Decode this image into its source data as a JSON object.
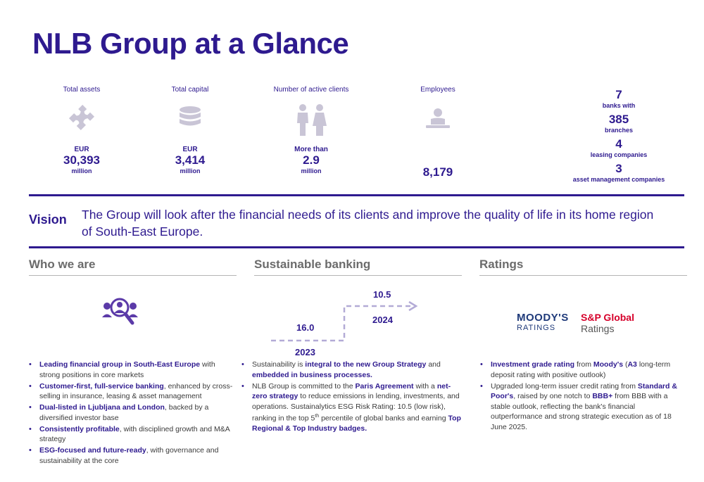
{
  "header": {
    "title": "NLB Group at a Glance"
  },
  "stats": [
    {
      "label": "Total assets",
      "icon": "puzzle-icon",
      "prefix": "EUR",
      "value": "30,393",
      "suffix": "million"
    },
    {
      "label": "Total capital",
      "icon": "coin-stack-icon",
      "prefix": "EUR",
      "value": "3,414",
      "suffix": "million"
    },
    {
      "label": "Number of active clients",
      "icon": "people-icon",
      "prefix": "More than",
      "value": "2.9",
      "suffix": "million"
    },
    {
      "label": "Employees",
      "icon": "employee-icon",
      "prefix": "",
      "value": "8,179",
      "suffix": ""
    }
  ],
  "network": [
    {
      "value": "7",
      "label": "banks with"
    },
    {
      "value": "385",
      "label": "branches"
    },
    {
      "value": "4",
      "label": "leasing companies"
    },
    {
      "value": "3",
      "label": "asset management companies"
    }
  ],
  "vision": {
    "heading": "Vision",
    "text_line1": "The Group will look after the financial needs of its clients and improve the quality of life in its home region",
    "text_line2": "of South-East Europe."
  },
  "who_we_are": {
    "heading": "Who we are",
    "bullets": [
      {
        "bold": "Leading financial group in South-East Europe",
        "rest": " with strong positions in core markets"
      },
      {
        "bold": "Customer-first, full-service banking",
        "rest": ", enhanced by cross-selling in insurance, leasing & asset management"
      },
      {
        "bold": "Dual-listed in Ljubljana and London",
        "rest": ", backed by a diversified investor base"
      },
      {
        "bold": "Consistently profitable",
        "rest": ", with disciplined growth and M&A strategy"
      },
      {
        "bold": "ESG-focused and future-ready",
        "rest": ", with governance and sustainability at the core"
      }
    ]
  },
  "sustainable": {
    "heading": "Sustainable banking",
    "chart_values": {
      "value_2023": "16.0",
      "year_2023": "2023",
      "value_2024": "10.5",
      "year_2024": "2024"
    },
    "b1_pre": "Sustainability is ",
    "b1_bold1": "integral to the new Group Strategy",
    "b1_mid": " and ",
    "b1_bold2": "embedded in business processes.",
    "b2_pre": "NLB Group is committed to the ",
    "b2_bold1": "Paris Agreement",
    "b2_mid1": " with a ",
    "b2_bold2": "net-zero strategy",
    "b2_mid2": " to reduce emissions in lending, investments, and operations. Sustainalytics ESG Risk Rating: 10.5 (low risk), ranking in the top 5",
    "b2_sup": "th",
    "b2_mid3": " percentile of global banks and earning ",
    "b2_bold3": "Top Regional & Top Industry badges."
  },
  "ratings": {
    "heading": "Ratings",
    "moodys_name": "MOODY'S",
    "moodys_sub": "RATINGS",
    "sp_name": "S&P Global",
    "sp_sub": "Ratings",
    "r1_bold1": "Investment grade rating",
    "r1_mid1": " from ",
    "r1_bold2": "Moody's",
    "r1_mid2": " (",
    "r1_bold3": "A3",
    "r1_mid3": " long-term deposit rating with positive outlook)",
    "r2_pre": "Upgraded long-term issuer credit rating from ",
    "r2_bold1": "Standard & Poor's",
    "r2_mid1": ", raised by one notch to ",
    "r2_bold2": "BBB+",
    "r2_mid2": " from BBB with a stable outlook, reflecting the bank's financial outperformance and strong strategic execution as of 18 June 2025."
  },
  "colors": {
    "brand_purple": "#2e1a8f",
    "icon_gray": "#c9c5d6",
    "icon_purple": "#5b3aa8",
    "moodys_blue": "#1f3a7a",
    "sp_red": "#d6002a"
  }
}
